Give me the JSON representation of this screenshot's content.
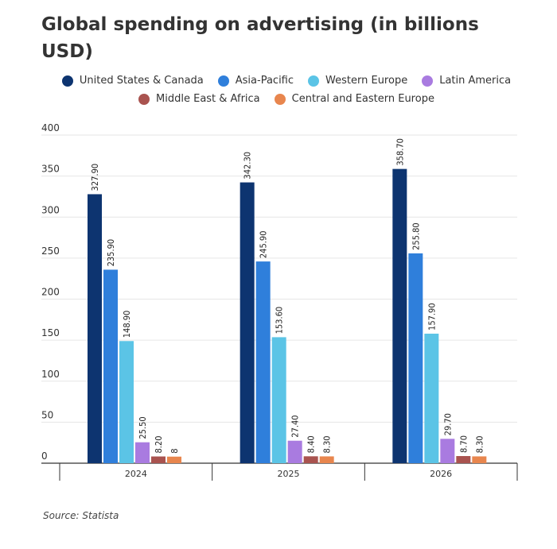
{
  "title": "Global spending on advertising (in billions USD)",
  "source": "Source: Statista",
  "chart_data": {
    "type": "bar",
    "title": "Global spending on advertising (in billions USD)",
    "xlabel": "",
    "ylabel": "",
    "categories": [
      "2024",
      "2025",
      "2026"
    ],
    "ylim": [
      0,
      400
    ],
    "yticks": [
      0,
      50,
      100,
      150,
      200,
      250,
      300,
      350,
      400
    ],
    "grid": true,
    "legend_position": "top",
    "series": [
      {
        "name": "United States & Canada",
        "color": "#0d3470",
        "values": [
          327.9,
          342.3,
          358.7
        ],
        "labels": [
          "327.90",
          "342.30",
          "358.70"
        ]
      },
      {
        "name": "Asia-Pacific",
        "color": "#2f7fdb",
        "values": [
          235.9,
          245.9,
          255.8
        ],
        "labels": [
          "235.90",
          "245.90",
          "255.80"
        ]
      },
      {
        "name": "Western Europe",
        "color": "#5bc4e6",
        "values": [
          148.9,
          153.6,
          157.9
        ],
        "labels": [
          "148.90",
          "153.60",
          "157.90"
        ]
      },
      {
        "name": "Latin America",
        "color": "#a97be0",
        "values": [
          25.5,
          27.4,
          29.7
        ],
        "labels": [
          "25.50",
          "27.40",
          "29.70"
        ]
      },
      {
        "name": "Middle East & Africa",
        "color": "#a9534f",
        "values": [
          8.2,
          8.4,
          8.7
        ],
        "labels": [
          "8.20",
          "8.40",
          "8.70"
        ]
      },
      {
        "name": "Central and Eastern Europe",
        "color": "#e8864e",
        "values": [
          8,
          8.3,
          8.3
        ],
        "labels": [
          "8",
          "8.30",
          "8.30"
        ]
      }
    ]
  }
}
